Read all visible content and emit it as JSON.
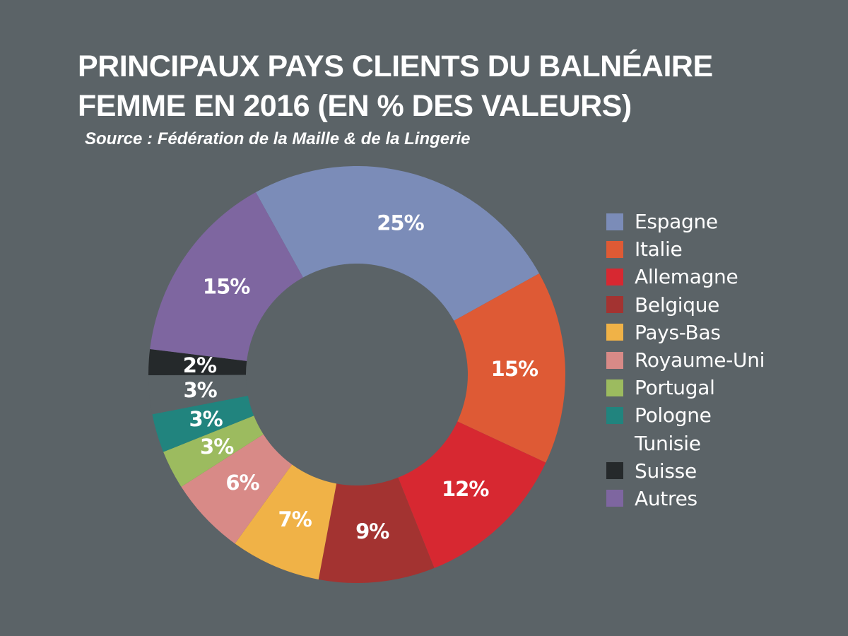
{
  "header": {
    "title_line1": "PRINCIPAUX PAYS CLIENTS DU BALNÉAIRE",
    "title_line2": "FEMME EN 2016 (EN % DES VALEURS)",
    "source": "Source : Fédération de la Maille & de la Lingerie"
  },
  "chart_data": {
    "type": "pie",
    "variant": "donut",
    "title": "PRINCIPAUX PAYS CLIENTS DU BALNÉAIRE FEMME EN 2016 (EN % DES VALEURS)",
    "legend_position": "right",
    "slices": [
      {
        "name": "Espagne",
        "value": 25,
        "label": "25%",
        "color": "#7b8cb8"
      },
      {
        "name": "Italie",
        "value": 15,
        "label": "15%",
        "color": "#de5a35"
      },
      {
        "name": "Allemagne",
        "value": 12,
        "label": "12%",
        "color": "#d72831"
      },
      {
        "name": "Belgique",
        "value": 9,
        "label": "9%",
        "color": "#a33331"
      },
      {
        "name": "Pays-Bas",
        "value": 7,
        "label": "7%",
        "color": "#f0b247"
      },
      {
        "name": "Royaume-Uni",
        "value": 6,
        "label": "6%",
        "color": "#d88a87"
      },
      {
        "name": "Portugal",
        "value": 3,
        "label": "3%",
        "color": "#9cbb5f"
      },
      {
        "name": "Pologne",
        "value": 3,
        "label": "3%",
        "color": "#21847e"
      },
      {
        "name": "Tunisie",
        "value": 3,
        "label": "3%",
        "color": "#5b6367"
      },
      {
        "name": "Suisse",
        "value": 2,
        "label": "2%",
        "color": "#25292b"
      },
      {
        "name": "Autres",
        "value": 15,
        "label": "15%",
        "color": "#7e66a0"
      }
    ]
  }
}
